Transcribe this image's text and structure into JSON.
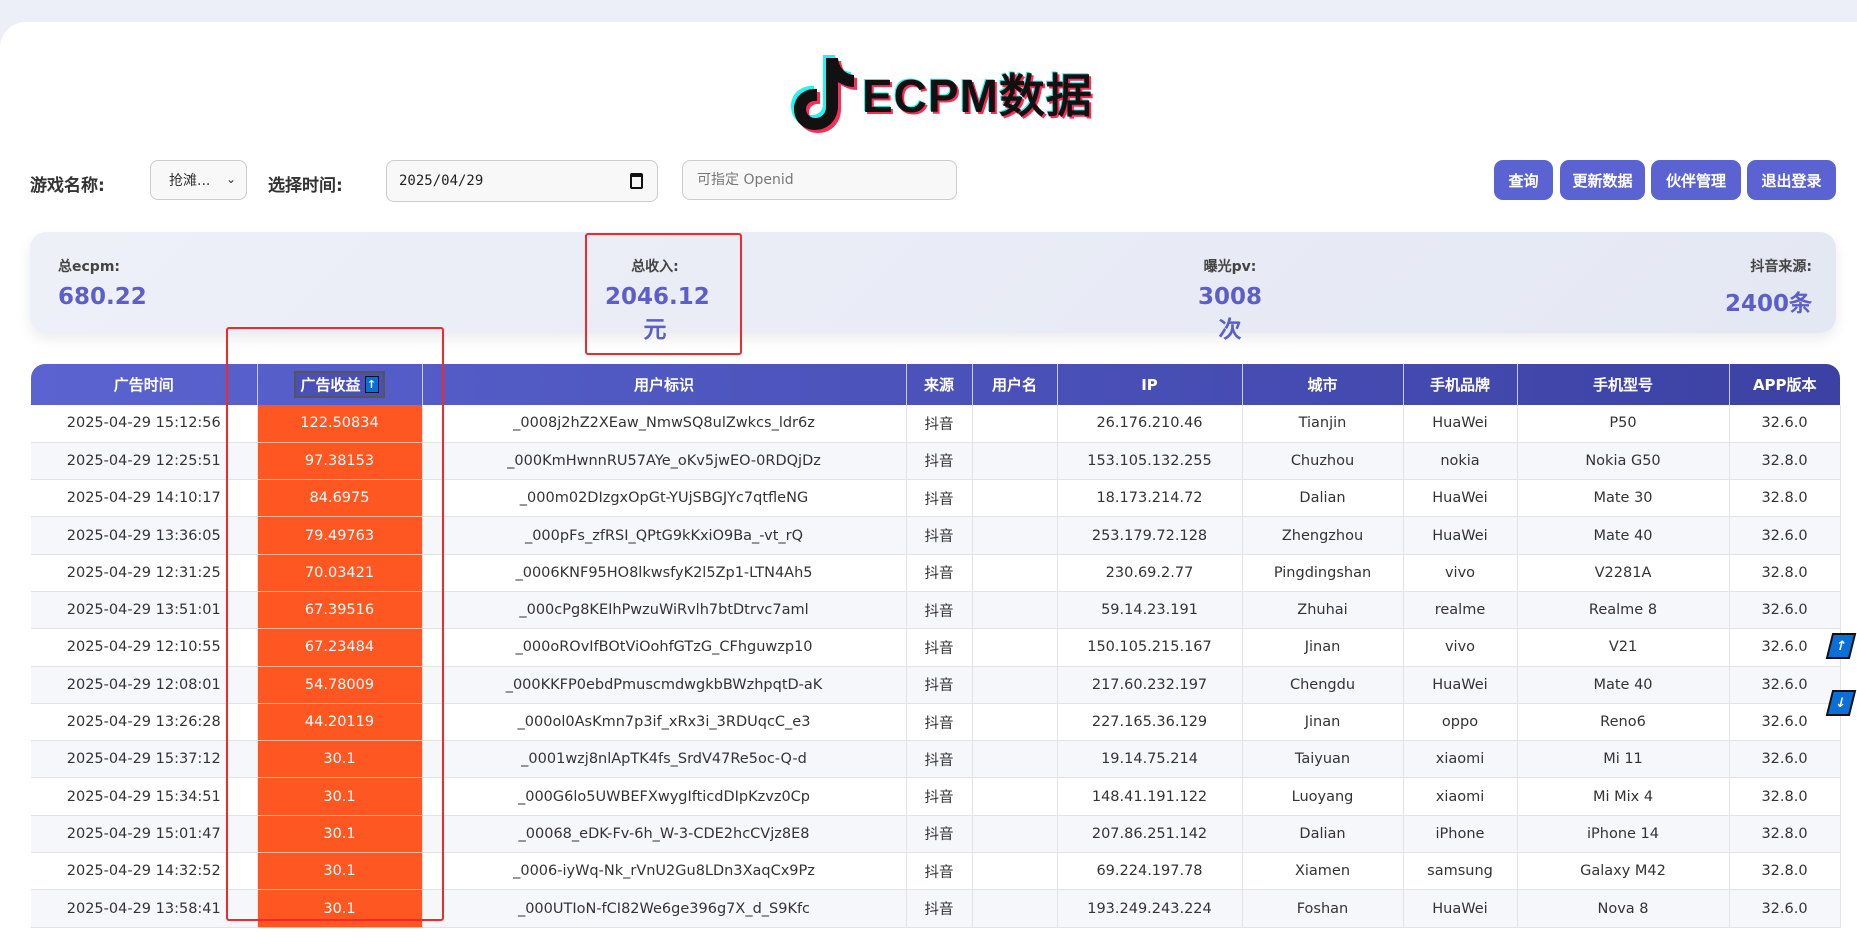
{
  "header": {
    "logo_text": "ECPM数据",
    "logo_icon": "tiktok-note-icon"
  },
  "filters": {
    "game_label": "游戏名称:",
    "game_value": "抢滩...",
    "time_label": "选择时间:",
    "date_value": "2025/04/29",
    "openid_placeholder": "可指定 Openid"
  },
  "buttons": {
    "query": "查询",
    "update": "更新数据",
    "partners": "伙伴管理",
    "logout": "退出登录"
  },
  "stats": [
    {
      "label": "总ecpm:",
      "value": "680.22"
    },
    {
      "label": "总收入:",
      "value": "2046.12元"
    },
    {
      "label": "曝光pv:",
      "value": "3008次"
    },
    {
      "label": "抖音来源:",
      "value": "2400条"
    }
  ],
  "table": {
    "headers": [
      "广告时间",
      "广告收益",
      "用户标识",
      "来源",
      "用户名",
      "IP",
      "城市",
      "手机品牌",
      "手机型号",
      "APP版本"
    ],
    "sort_icon": "↑",
    "rows": [
      [
        "2025-04-29 15:12:56",
        "122.50834",
        "_0008j2hZ2XEaw_NmwSQ8ulZwkcs_ldr6z",
        "抖音",
        "",
        "26.176.210.46",
        "Tianjin",
        "HuaWei",
        "P50",
        "32.6.0"
      ],
      [
        "2025-04-29 12:25:51",
        "97.38153",
        "_000KmHwnnRU57AYe_oKv5jwEO-0RDQjDz",
        "抖音",
        "",
        "153.105.132.255",
        "Chuzhou",
        "nokia",
        "Nokia G50",
        "32.8.0"
      ],
      [
        "2025-04-29 14:10:17",
        "84.6975",
        "_000m02DIzgxOpGt-YUjSBGJYc7qtfleNG",
        "抖音",
        "",
        "18.173.214.72",
        "Dalian",
        "HuaWei",
        "Mate 30",
        "32.8.0"
      ],
      [
        "2025-04-29 13:36:05",
        "79.49763",
        "_000pFs_zfRSI_QPtG9kKxiO9Ba_-vt_rQ",
        "抖音",
        "",
        "253.179.72.128",
        "Zhengzhou",
        "HuaWei",
        "Mate 40",
        "32.6.0"
      ],
      [
        "2025-04-29 12:31:25",
        "70.03421",
        "_0006KNF95HO8lkwsfyK2l5Zp1-LTN4Ah5",
        "抖音",
        "",
        "230.69.2.77",
        "Pingdingshan",
        "vivo",
        "V2281A",
        "32.8.0"
      ],
      [
        "2025-04-29 13:51:01",
        "67.39516",
        "_000cPg8KEIhPwzuWiRvlh7btDtrvc7aml",
        "抖音",
        "",
        "59.14.23.191",
        "Zhuhai",
        "realme",
        "Realme 8",
        "32.6.0"
      ],
      [
        "2025-04-29 12:10:55",
        "67.23484",
        "_000oROvIfBOtViOohfGTzG_CFhguwzp10",
        "抖音",
        "",
        "150.105.215.167",
        "Jinan",
        "vivo",
        "V21",
        "32.6.0"
      ],
      [
        "2025-04-29 12:08:01",
        "54.78009",
        "_000KKFP0ebdPmuscmdwgkbBWzhpqtD-aK",
        "抖音",
        "",
        "217.60.232.197",
        "Chengdu",
        "HuaWei",
        "Mate 40",
        "32.6.0"
      ],
      [
        "2025-04-29 13:26:28",
        "44.20119",
        "_000ol0AsKmn7p3if_xRx3i_3RDUqcC_e3",
        "抖音",
        "",
        "227.165.36.129",
        "Jinan",
        "oppo",
        "Reno6",
        "32.6.0"
      ],
      [
        "2025-04-29 15:37:12",
        "30.1",
        "_0001wzj8nlApTK4fs_SrdV47Re5oc-Q-d",
        "抖音",
        "",
        "19.14.75.214",
        "Taiyuan",
        "xiaomi",
        "Mi 11",
        "32.6.0"
      ],
      [
        "2025-04-29 15:34:51",
        "30.1",
        "_000G6lo5UWBEFXwygIfticdDIpKzvz0Cp",
        "抖音",
        "",
        "148.41.191.122",
        "Luoyang",
        "xiaomi",
        "Mi Mix 4",
        "32.8.0"
      ],
      [
        "2025-04-29 15:01:47",
        "30.1",
        "_00068_eDK-Fv-6h_W-3-CDE2hcCVjz8E8",
        "抖音",
        "",
        "207.86.251.142",
        "Dalian",
        "iPhone",
        "iPhone 14",
        "32.8.0"
      ],
      [
        "2025-04-29 14:32:52",
        "30.1",
        "_0006-iyWq-Nk_rVnU2Gu8LDn3XaqCx9Pz",
        "抖音",
        "",
        "69.224.197.78",
        "Xiamen",
        "samsung",
        "Galaxy M42",
        "32.8.0"
      ],
      [
        "2025-04-29 13:58:41",
        "30.1",
        "_000UTIoN-fCI82We6ge396g7X_d_S9Kfc",
        "抖音",
        "",
        "193.249.243.224",
        "Foshan",
        "HuaWei",
        "Nova 8",
        "32.6.0"
      ]
    ]
  },
  "scroll": {
    "up": "↑",
    "down": "↓"
  },
  "colors": {
    "accent": "#5b63d3",
    "revenue_cell": "#ff5722",
    "annotation": "#f02a2a"
  }
}
